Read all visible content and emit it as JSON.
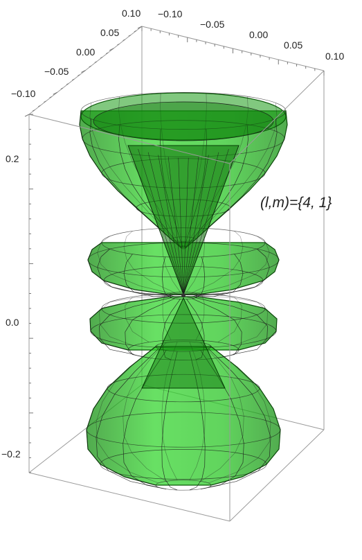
{
  "chart_data": {
    "type": "surface3d",
    "title": "",
    "annotation": {
      "prefix": "(",
      "l": "l",
      "comma": ",",
      "m": "m",
      "suffix": ")=",
      "values": "{4, 1}"
    },
    "x_ticks": [
      "−0.10",
      "−0.05",
      "0.00",
      "0.05",
      "0.10"
    ],
    "y_ticks": [
      "0.10",
      "0.05",
      "0.00",
      "−0.05",
      "−0.10"
    ],
    "z_ticks": [
      "0.2",
      "0.0",
      "−0.2"
    ],
    "xlim": [
      -0.1,
      0.1
    ],
    "ylim": [
      -0.1,
      0.1
    ],
    "zlim": [
      -0.28,
      0.28
    ],
    "surface_color": "#22c61e",
    "mesh_color": "#1a1a1a",
    "box_color": "#9a9a9a"
  }
}
